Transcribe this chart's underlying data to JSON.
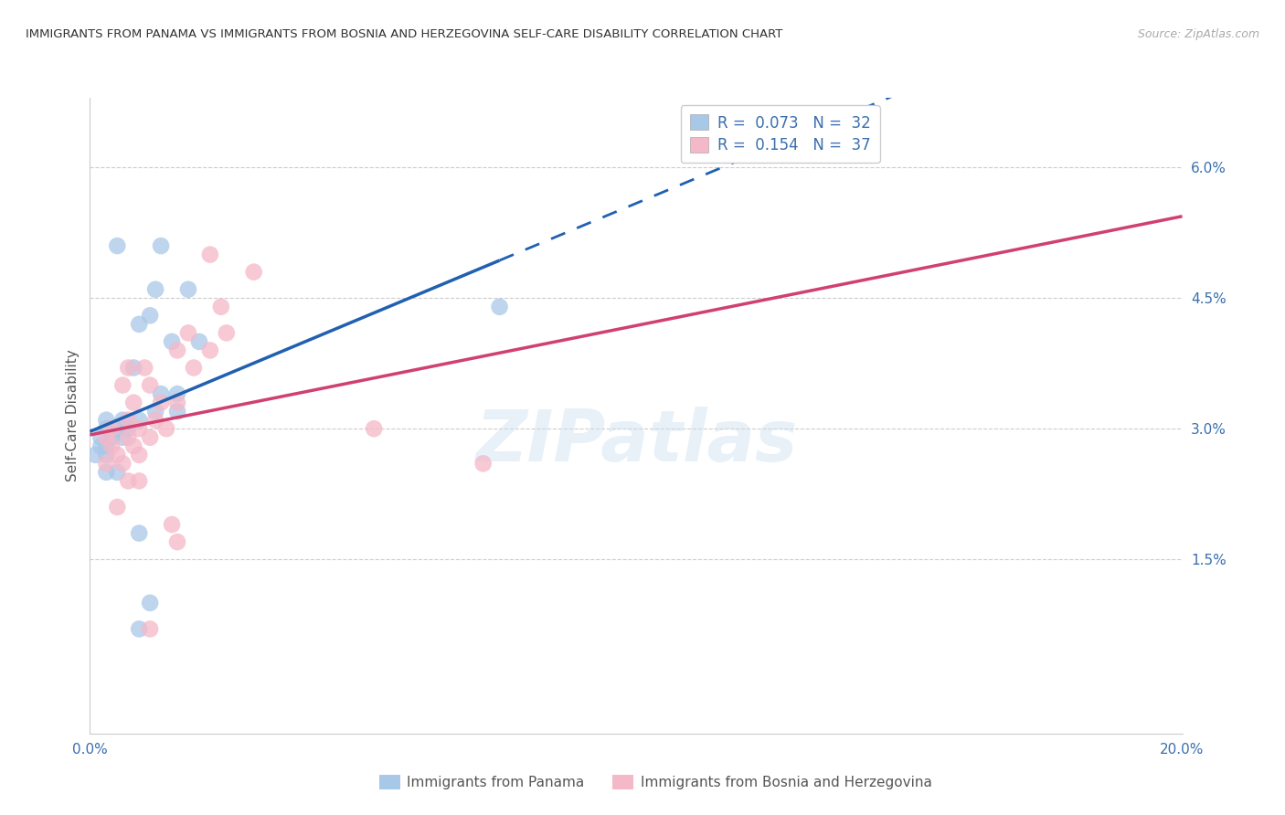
{
  "title": "IMMIGRANTS FROM PANAMA VS IMMIGRANTS FROM BOSNIA AND HERZEGOVINA SELF-CARE DISABILITY CORRELATION CHART",
  "source": "Source: ZipAtlas.com",
  "ylabel": "Self-Care Disability",
  "xlim": [
    0.0,
    0.2
  ],
  "ylim": [
    -0.005,
    0.068
  ],
  "xticks": [
    0.0,
    0.04,
    0.08,
    0.12,
    0.16,
    0.2
  ],
  "xticklabels": [
    "0.0%",
    "",
    "",
    "",
    "",
    "20.0%"
  ],
  "yticks_right": [
    0.015,
    0.03,
    0.045,
    0.06
  ],
  "yticklabels_right": [
    "1.5%",
    "3.0%",
    "4.5%",
    "6.0%"
  ],
  "legend_r1_label": "R = ",
  "legend_r1_val": "0.073",
  "legend_n1_label": "  N = ",
  "legend_n1_val": "32",
  "legend_r2_val": "0.154",
  "legend_n2_val": "37",
  "panama_color": "#a8c8e8",
  "bosnia_color": "#f5b8c8",
  "panama_line_color": "#2060b0",
  "bosnia_line_color": "#d04070",
  "panama_line_dash_start": 0.075,
  "watermark": "ZIPatlas",
  "panama_points": [
    [
      0.005,
      0.051
    ],
    [
      0.013,
      0.051
    ],
    [
      0.009,
      0.042
    ],
    [
      0.012,
      0.046
    ],
    [
      0.018,
      0.046
    ],
    [
      0.011,
      0.043
    ],
    [
      0.015,
      0.04
    ],
    [
      0.02,
      0.04
    ],
    [
      0.008,
      0.037
    ],
    [
      0.013,
      0.034
    ],
    [
      0.016,
      0.034
    ],
    [
      0.012,
      0.032
    ],
    [
      0.016,
      0.032
    ],
    [
      0.003,
      0.031
    ],
    [
      0.006,
      0.031
    ],
    [
      0.009,
      0.031
    ],
    [
      0.003,
      0.03
    ],
    [
      0.005,
      0.03
    ],
    [
      0.007,
      0.03
    ],
    [
      0.002,
      0.029
    ],
    [
      0.004,
      0.029
    ],
    [
      0.006,
      0.029
    ],
    [
      0.002,
      0.028
    ],
    [
      0.003,
      0.028
    ],
    [
      0.001,
      0.027
    ],
    [
      0.003,
      0.027
    ],
    [
      0.003,
      0.025
    ],
    [
      0.005,
      0.025
    ],
    [
      0.009,
      0.018
    ],
    [
      0.011,
      0.01
    ],
    [
      0.009,
      0.007
    ],
    [
      0.075,
      0.044
    ]
  ],
  "bosnia_points": [
    [
      0.022,
      0.05
    ],
    [
      0.03,
      0.048
    ],
    [
      0.024,
      0.044
    ],
    [
      0.018,
      0.041
    ],
    [
      0.025,
      0.041
    ],
    [
      0.016,
      0.039
    ],
    [
      0.022,
      0.039
    ],
    [
      0.007,
      0.037
    ],
    [
      0.01,
      0.037
    ],
    [
      0.019,
      0.037
    ],
    [
      0.006,
      0.035
    ],
    [
      0.011,
      0.035
    ],
    [
      0.008,
      0.033
    ],
    [
      0.013,
      0.033
    ],
    [
      0.016,
      0.033
    ],
    [
      0.007,
      0.031
    ],
    [
      0.012,
      0.031
    ],
    [
      0.004,
      0.03
    ],
    [
      0.009,
      0.03
    ],
    [
      0.014,
      0.03
    ],
    [
      0.003,
      0.029
    ],
    [
      0.007,
      0.029
    ],
    [
      0.011,
      0.029
    ],
    [
      0.004,
      0.028
    ],
    [
      0.008,
      0.028
    ],
    [
      0.005,
      0.027
    ],
    [
      0.009,
      0.027
    ],
    [
      0.003,
      0.026
    ],
    [
      0.006,
      0.026
    ],
    [
      0.007,
      0.024
    ],
    [
      0.009,
      0.024
    ],
    [
      0.005,
      0.021
    ],
    [
      0.015,
      0.019
    ],
    [
      0.016,
      0.017
    ],
    [
      0.052,
      0.03
    ],
    [
      0.072,
      0.026
    ],
    [
      0.011,
      0.007
    ]
  ]
}
